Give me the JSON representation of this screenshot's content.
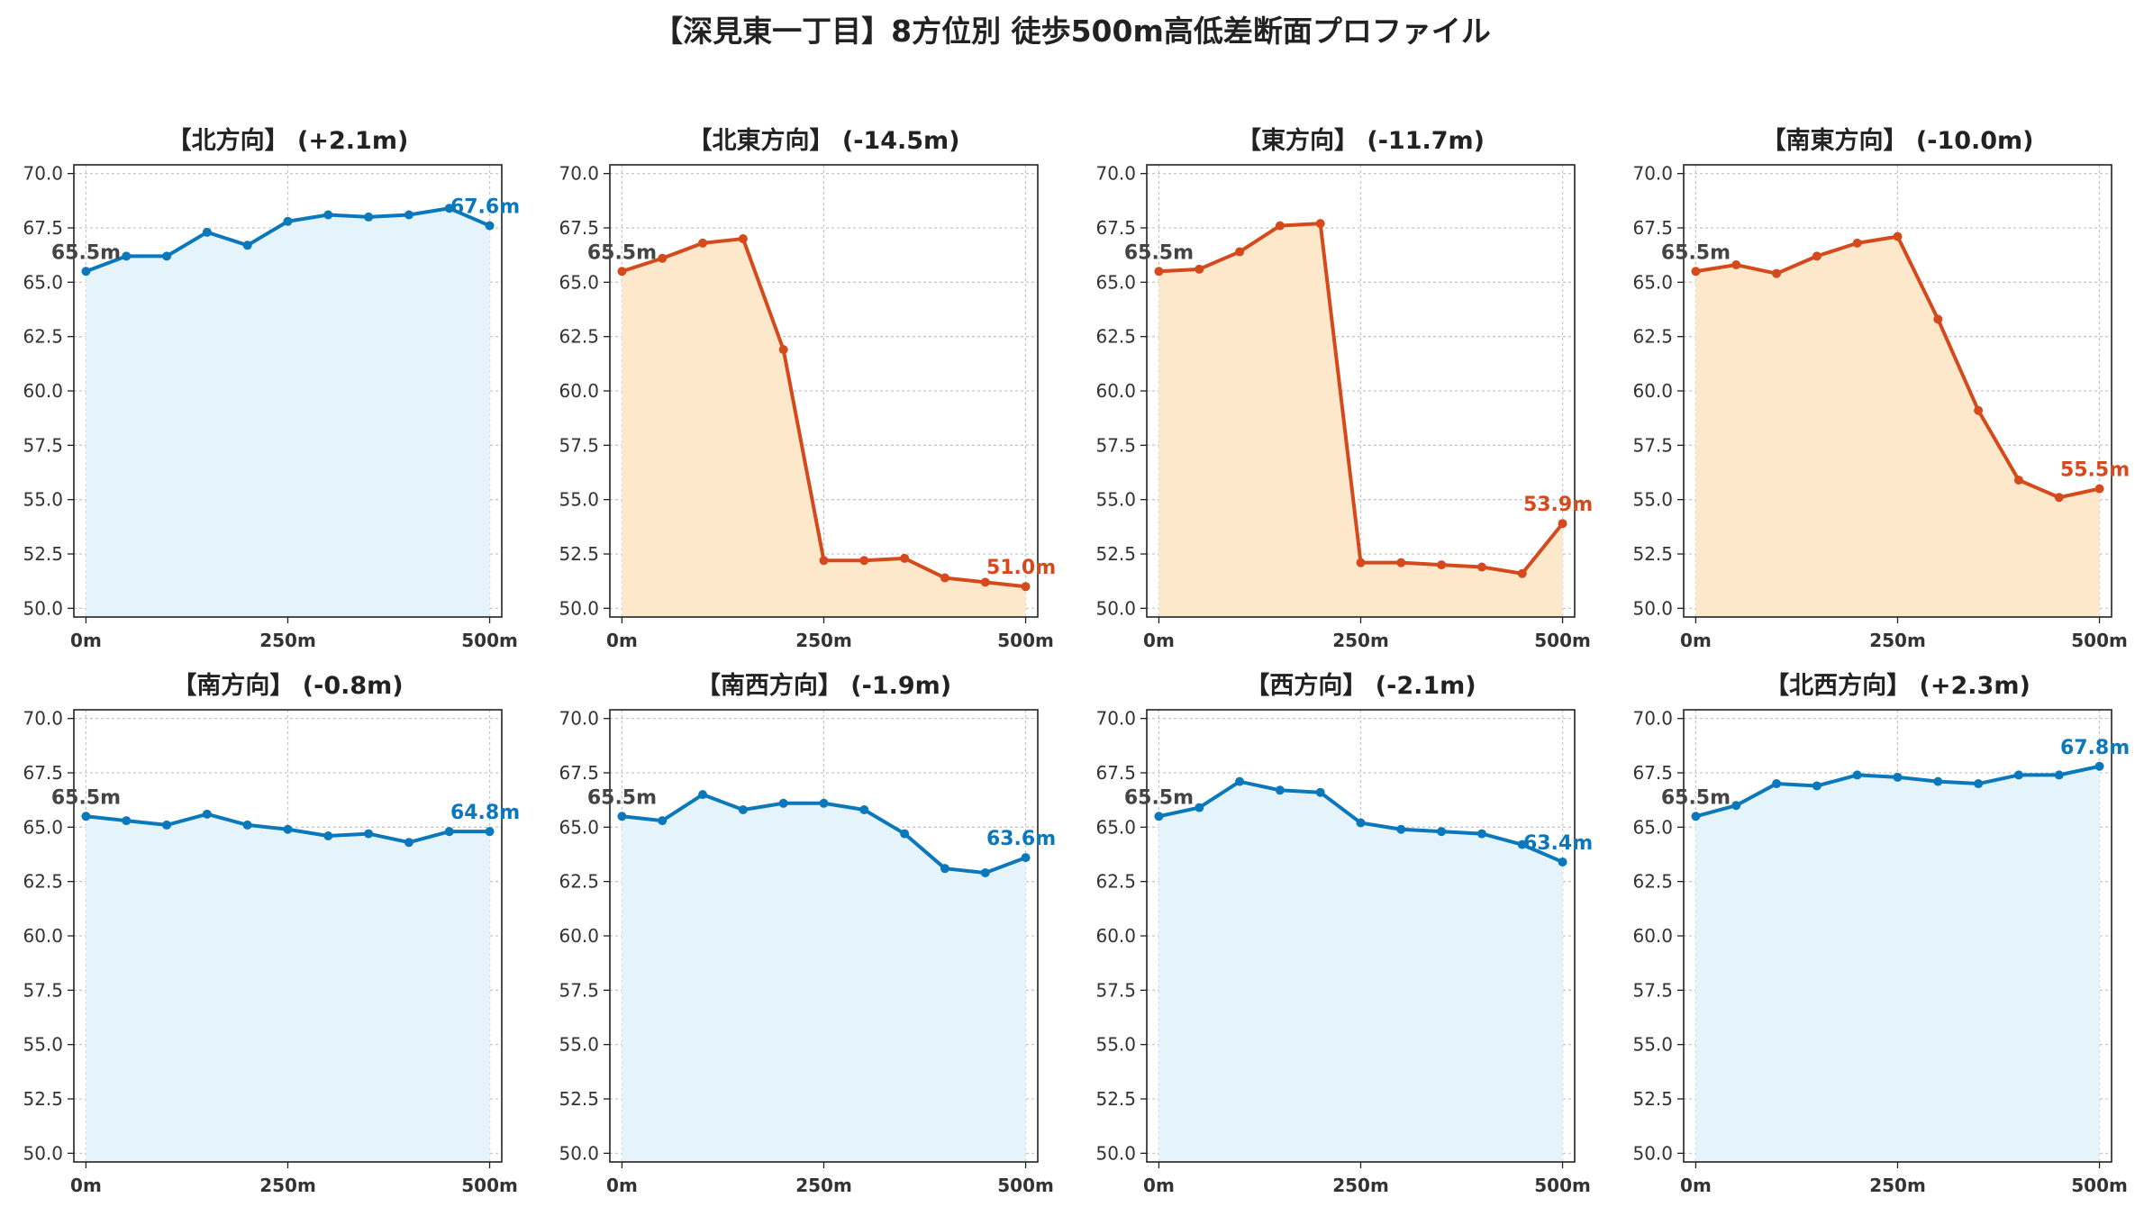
{
  "title": "【深見東一丁目】8方位別 徒歩500m高低差断面プロファイル",
  "colors": {
    "up_line": "#0b78bb",
    "up_fill": "#e5f4fb",
    "down_line": "#d54a1c",
    "down_fill": "#fde8cc",
    "grid": "#c8c8c8",
    "start_label": "#444444"
  },
  "chart_data": [
    {
      "type": "area",
      "title": "【北方向】 (+2.1m)",
      "trend": "up",
      "x": [
        0,
        50,
        100,
        150,
        200,
        250,
        300,
        350,
        400,
        450,
        500
      ],
      "values": [
        65.5,
        66.2,
        66.2,
        67.3,
        66.7,
        67.8,
        68.1,
        68.0,
        68.1,
        68.4,
        67.6
      ],
      "start_label": "65.5m",
      "end_label": "67.6m",
      "xticks": [
        "0m",
        "250m",
        "500m"
      ],
      "yticks": [
        "50.0",
        "52.5",
        "55.0",
        "57.5",
        "60.0",
        "62.5",
        "65.0",
        "67.5",
        "70.0"
      ],
      "ylim": [
        49.6,
        70.4
      ],
      "xlim": [
        -15,
        515
      ],
      "grid": true
    },
    {
      "type": "area",
      "title": "【北東方向】 (-14.5m)",
      "trend": "down",
      "x": [
        0,
        50,
        100,
        150,
        200,
        250,
        300,
        350,
        400,
        450,
        500
      ],
      "values": [
        65.5,
        66.1,
        66.8,
        67.0,
        61.9,
        52.2,
        52.2,
        52.3,
        51.4,
        51.2,
        51.0
      ],
      "start_label": "65.5m",
      "end_label": "51.0m",
      "xticks": [
        "0m",
        "250m",
        "500m"
      ],
      "yticks": [
        "50.0",
        "52.5",
        "55.0",
        "57.5",
        "60.0",
        "62.5",
        "65.0",
        "67.5",
        "70.0"
      ],
      "ylim": [
        49.6,
        70.4
      ],
      "xlim": [
        -15,
        515
      ],
      "grid": true
    },
    {
      "type": "area",
      "title": "【東方向】 (-11.7m)",
      "trend": "down",
      "x": [
        0,
        50,
        100,
        150,
        200,
        250,
        300,
        350,
        400,
        450,
        500
      ],
      "values": [
        65.5,
        65.6,
        66.4,
        67.6,
        67.7,
        52.1,
        52.1,
        52.0,
        51.9,
        51.6,
        53.9
      ],
      "start_label": "65.5m",
      "end_label": "53.9m",
      "xticks": [
        "0m",
        "250m",
        "500m"
      ],
      "yticks": [
        "50.0",
        "52.5",
        "55.0",
        "57.5",
        "60.0",
        "62.5",
        "65.0",
        "67.5",
        "70.0"
      ],
      "ylim": [
        49.6,
        70.4
      ],
      "xlim": [
        -15,
        515
      ],
      "grid": true
    },
    {
      "type": "area",
      "title": "【南東方向】 (-10.0m)",
      "trend": "down",
      "x": [
        0,
        50,
        100,
        150,
        200,
        250,
        300,
        350,
        400,
        450,
        500
      ],
      "values": [
        65.5,
        65.8,
        65.4,
        66.2,
        66.8,
        67.1,
        63.3,
        59.1,
        55.9,
        55.1,
        55.5
      ],
      "start_label": "65.5m",
      "end_label": "55.5m",
      "xticks": [
        "0m",
        "250m",
        "500m"
      ],
      "yticks": [
        "50.0",
        "52.5",
        "55.0",
        "57.5",
        "60.0",
        "62.5",
        "65.0",
        "67.5",
        "70.0"
      ],
      "ylim": [
        49.6,
        70.4
      ],
      "xlim": [
        -15,
        515
      ],
      "grid": true
    },
    {
      "type": "area",
      "title": "【南方向】 (-0.8m)",
      "trend": "up",
      "x": [
        0,
        50,
        100,
        150,
        200,
        250,
        300,
        350,
        400,
        450,
        500
      ],
      "values": [
        65.5,
        65.3,
        65.1,
        65.6,
        65.1,
        64.9,
        64.6,
        64.7,
        64.3,
        64.8,
        64.8
      ],
      "start_label": "65.5m",
      "end_label": "64.8m",
      "xticks": [
        "0m",
        "250m",
        "500m"
      ],
      "yticks": [
        "50.0",
        "52.5",
        "55.0",
        "57.5",
        "60.0",
        "62.5",
        "65.0",
        "67.5",
        "70.0"
      ],
      "ylim": [
        49.6,
        70.4
      ],
      "xlim": [
        -15,
        515
      ],
      "grid": true
    },
    {
      "type": "area",
      "title": "【南西方向】 (-1.9m)",
      "trend": "up",
      "x": [
        0,
        50,
        100,
        150,
        200,
        250,
        300,
        350,
        400,
        450,
        500
      ],
      "values": [
        65.5,
        65.3,
        66.5,
        65.8,
        66.1,
        66.1,
        65.8,
        64.7,
        63.1,
        62.9,
        63.6
      ],
      "start_label": "65.5m",
      "end_label": "63.6m",
      "xticks": [
        "0m",
        "250m",
        "500m"
      ],
      "yticks": [
        "50.0",
        "52.5",
        "55.0",
        "57.5",
        "60.0",
        "62.5",
        "65.0",
        "67.5",
        "70.0"
      ],
      "ylim": [
        49.6,
        70.4
      ],
      "xlim": [
        -15,
        515
      ],
      "grid": true
    },
    {
      "type": "area",
      "title": "【西方向】 (-2.1m)",
      "trend": "up",
      "x": [
        0,
        50,
        100,
        150,
        200,
        250,
        300,
        350,
        400,
        450,
        500
      ],
      "values": [
        65.5,
        65.9,
        67.1,
        66.7,
        66.6,
        65.2,
        64.9,
        64.8,
        64.7,
        64.2,
        63.4
      ],
      "start_label": "65.5m",
      "end_label": "63.4m",
      "xticks": [
        "0m",
        "250m",
        "500m"
      ],
      "yticks": [
        "50.0",
        "52.5",
        "55.0",
        "57.5",
        "60.0",
        "62.5",
        "65.0",
        "67.5",
        "70.0"
      ],
      "ylim": [
        49.6,
        70.4
      ],
      "xlim": [
        -15,
        515
      ],
      "grid": true
    },
    {
      "type": "area",
      "title": "【北西方向】 (+2.3m)",
      "trend": "up",
      "x": [
        0,
        50,
        100,
        150,
        200,
        250,
        300,
        350,
        400,
        450,
        500
      ],
      "values": [
        65.5,
        66.0,
        67.0,
        66.9,
        67.4,
        67.3,
        67.1,
        67.0,
        67.4,
        67.4,
        67.8
      ],
      "start_label": "65.5m",
      "end_label": "67.8m",
      "xticks": [
        "0m",
        "250m",
        "500m"
      ],
      "yticks": [
        "50.0",
        "52.5",
        "55.0",
        "57.5",
        "60.0",
        "62.5",
        "65.0",
        "67.5",
        "70.0"
      ],
      "ylim": [
        49.6,
        70.4
      ],
      "xlim": [
        -15,
        515
      ],
      "grid": true
    }
  ]
}
